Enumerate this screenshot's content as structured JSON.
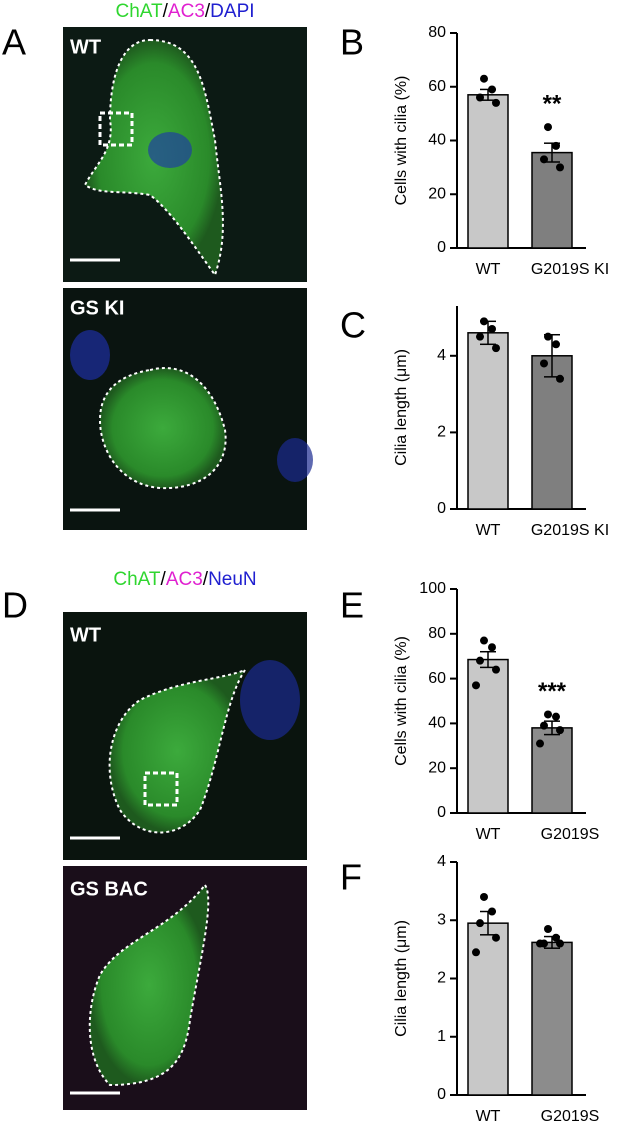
{
  "panels": [
    {
      "letter": "A",
      "stain": [
        {
          "text": "ChAT",
          "color": "#2fd62f"
        },
        {
          "text": "/",
          "color": "#000000"
        },
        {
          "text": "AC3",
          "color": "#e020d0"
        },
        {
          "text": "/",
          "color": "#000000"
        },
        {
          "text": "DAPI",
          "color": "#2020d0"
        }
      ],
      "images": [
        "WT",
        "GS KI"
      ]
    },
    {
      "letter": "D",
      "stain": [
        {
          "text": "ChAT",
          "color": "#2fd62f"
        },
        {
          "text": "/",
          "color": "#000000"
        },
        {
          "text": "AC3",
          "color": "#e020d0"
        },
        {
          "text": "/",
          "color": "#000000"
        },
        {
          "text": "NeuN",
          "color": "#2020d0"
        }
      ],
      "images": [
        "WT",
        "GS BAC"
      ]
    }
  ],
  "chart_data": [
    {
      "panel": "B",
      "type": "bar",
      "y_label": "Cells with cilia (%)",
      "categories": [
        "WT",
        "G2019S KI"
      ],
      "values": [
        57,
        35.5
      ],
      "errors": [
        2,
        3.5
      ],
      "colors": [
        "#c8c8c8",
        "#7f7f7f"
      ],
      "points": [
        [
          63,
          59,
          56,
          54
        ],
        [
          45,
          38,
          33,
          30
        ]
      ],
      "significance": "**",
      "ylim": [
        0,
        80
      ],
      "yticks": [
        0,
        20,
        40,
        60,
        80
      ]
    },
    {
      "panel": "C",
      "type": "bar",
      "y_label": "Cilia length (μm)",
      "categories": [
        "WT",
        "G2019S KI"
      ],
      "values": [
        4.6,
        4.0
      ],
      "errors": [
        0.3,
        0.55
      ],
      "colors": [
        "#c8c8c8",
        "#7f7f7f"
      ],
      "points": [
        [
          4.9,
          4.7,
          4.5,
          4.2
        ],
        [
          4.5,
          4.3,
          3.8,
          3.4
        ]
      ],
      "ylim": [
        0,
        5.3
      ],
      "yticks": [
        0,
        2,
        4
      ]
    },
    {
      "panel": "E",
      "type": "bar",
      "y_label": "Cells with cilia (%)",
      "categories": [
        "WT",
        "G2019S"
      ],
      "values": [
        68.5,
        38
      ],
      "errors": [
        3.5,
        3
      ],
      "colors": [
        "#c8c8c8",
        "#8c8c8c"
      ],
      "points": [
        [
          77,
          74,
          68,
          64,
          57
        ],
        [
          44,
          43,
          39,
          37,
          31
        ]
      ],
      "significance": "***",
      "ylim": [
        0,
        100
      ],
      "yticks": [
        0,
        20,
        40,
        60,
        80,
        100
      ]
    },
    {
      "panel": "F",
      "type": "bar",
      "y_label": "Cilia length (μm)",
      "categories": [
        "WT",
        "G2019S"
      ],
      "values": [
        2.95,
        2.62
      ],
      "errors": [
        0.2,
        0.1
      ],
      "colors": [
        "#c8c8c8",
        "#8c8c8c"
      ],
      "points": [
        [
          3.4,
          3.15,
          2.95,
          2.7,
          2.45
        ],
        [
          2.85,
          2.7,
          2.6,
          2.6,
          2.6
        ]
      ],
      "ylim": [
        0,
        4
      ],
      "yticks": [
        0,
        1,
        2,
        3,
        4
      ]
    }
  ]
}
